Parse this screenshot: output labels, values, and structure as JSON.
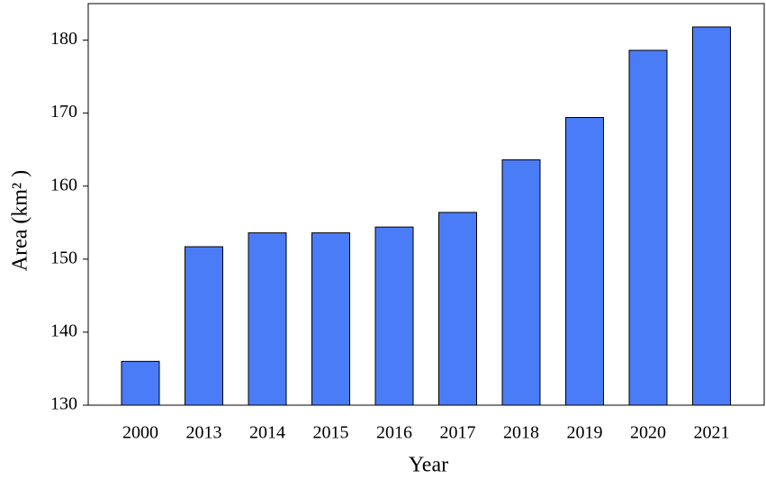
{
  "chart_data": {
    "type": "bar",
    "x_label": "Year",
    "y_label": "Area (km² )",
    "categories": [
      "2000",
      "2013",
      "2014",
      "2015",
      "2016",
      "2017",
      "2018",
      "2019",
      "2020",
      "2021"
    ],
    "values": [
      136.0,
      151.7,
      153.6,
      153.6,
      154.4,
      156.4,
      163.6,
      169.4,
      178.6,
      181.8
    ],
    "color": "#4a7cf7",
    "ylim": [
      130,
      185
    ],
    "yticks": [
      130,
      140,
      150,
      160,
      170,
      180
    ],
    "grid": false
  }
}
